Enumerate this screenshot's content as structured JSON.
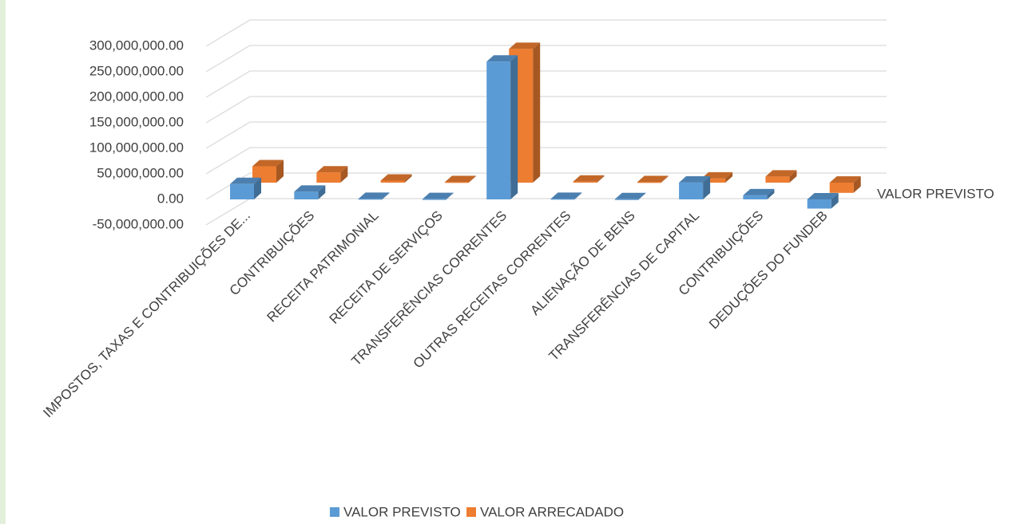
{
  "chart_data": {
    "type": "bar3d",
    "categories": [
      "IMPOSTOS, TAXAS E CONTRIBUIÇÕES DE...",
      "CONTRIBUIÇÕES",
      "RECEITA PATRIMONIAL",
      "RECEITA DE SERVIÇOS",
      "TRANSFERÊNCIAS CORRENTES",
      "OUTRAS RECEITAS CORRENTES",
      "ALIENAÇÃO DE BENS",
      "TRANSFERÊNCIAS DE CAPITAL",
      "CONTRIBUIÇÕES",
      "DEDUÇÕES DO FUNDEB"
    ],
    "series": [
      {
        "name": "VALOR PREVISTO",
        "color": "#5b9bd5",
        "values": [
          30000000,
          15000000,
          1000000,
          500000,
          270000000,
          1000000,
          300000,
          33000000,
          8000000,
          -18000000
        ]
      },
      {
        "name": "VALOR ARRECADADO",
        "color": "#ed7d31",
        "values": [
          32000000,
          20000000,
          4000000,
          1000000,
          262000000,
          2000000,
          1000000,
          8000000,
          12000000,
          -20000000
        ]
      }
    ],
    "depth_axis_label": "VALOR PREVISTO",
    "ylim": [
      -50000000,
      300000000
    ],
    "yticks": [
      {
        "value": -50000000,
        "label": "-50,000,000.00"
      },
      {
        "value": 0,
        "label": "0.00"
      },
      {
        "value": 50000000,
        "label": "50,000,000.00"
      },
      {
        "value": 100000000,
        "label": "100,000,000.00"
      },
      {
        "value": 150000000,
        "label": "150,000,000.00"
      },
      {
        "value": 200000000,
        "label": "200,000,000.00"
      },
      {
        "value": 250000000,
        "label": "250,000,000.00"
      },
      {
        "value": 300000000,
        "label": "300,000,000.00"
      }
    ],
    "grid": true,
    "legend": "bottom"
  }
}
